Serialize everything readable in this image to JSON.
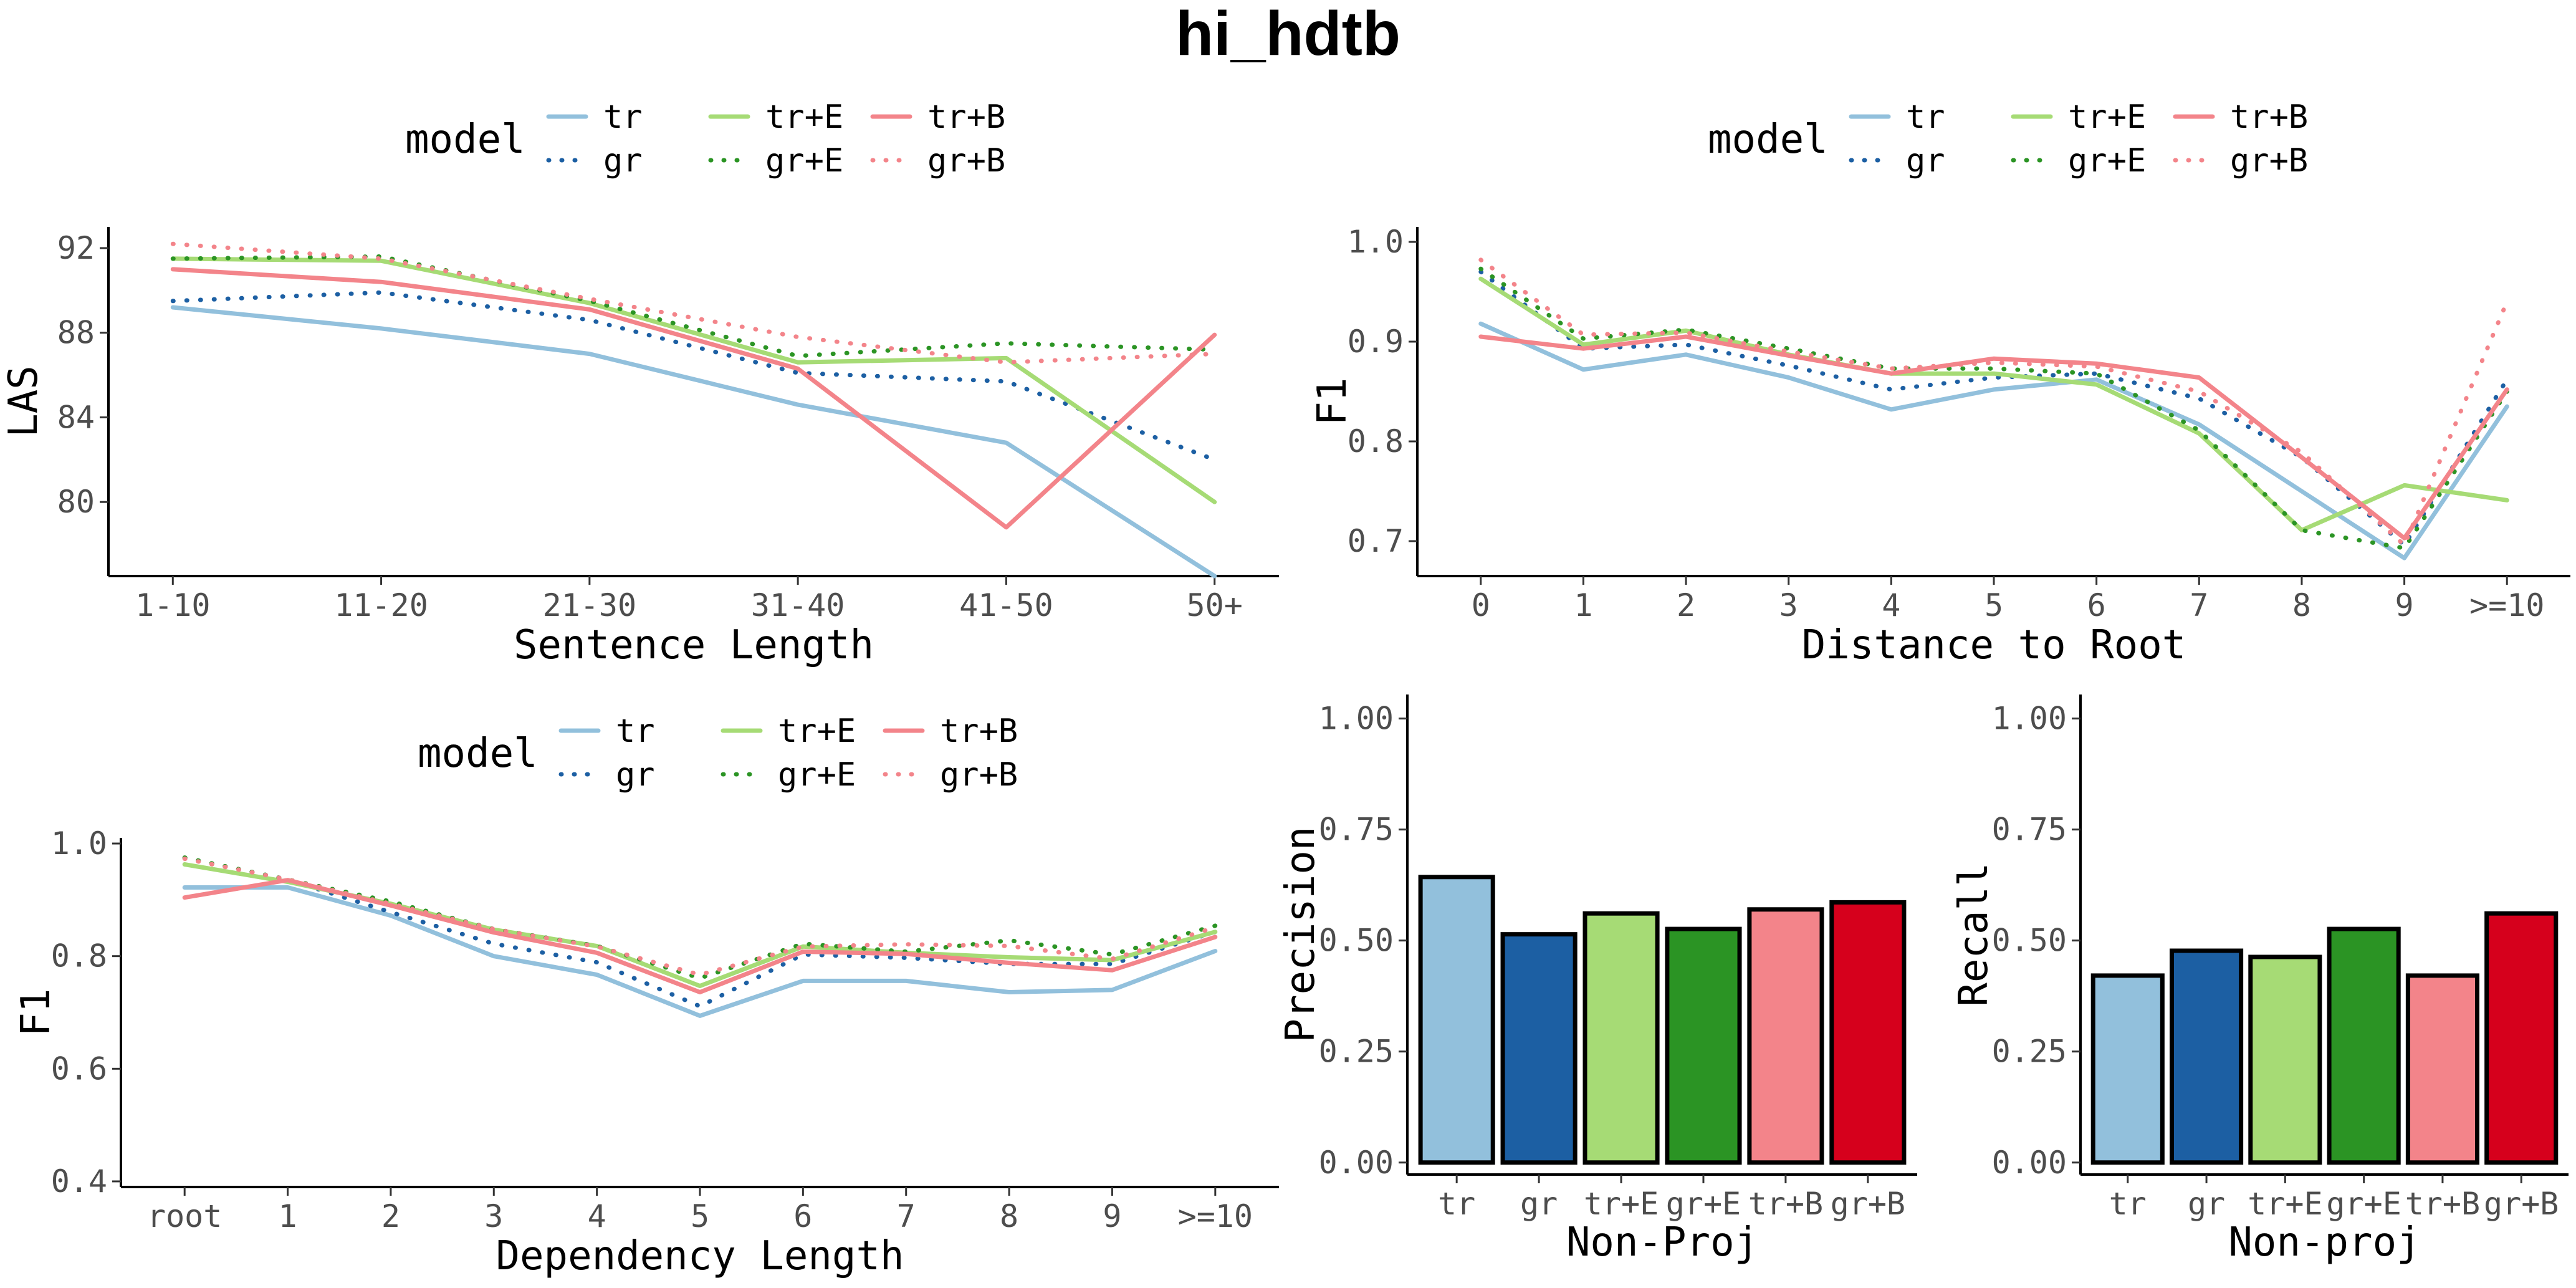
{
  "title": "hi_hdtb",
  "legend": {
    "title": "model",
    "entries": [
      {
        "name": "tr",
        "color": "#92c0dc",
        "dash": "solid"
      },
      {
        "name": "tr+E",
        "color": "#a6db75",
        "dash": "solid"
      },
      {
        "name": "tr+B",
        "color": "#f3848a",
        "dash": "solid"
      },
      {
        "name": "gr",
        "color": "#1c5fa3",
        "dash": "dotted"
      },
      {
        "name": "gr+E",
        "color": "#2b9424",
        "dash": "dotted"
      },
      {
        "name": "gr+B",
        "color": "#f3848a",
        "dash": "dotted"
      }
    ]
  },
  "chart_data": [
    {
      "id": "sentence-length",
      "type": "line",
      "categories": [
        "1-10",
        "11-20",
        "21-30",
        "31-40",
        "41-50",
        "50+"
      ],
      "xlabel": "Sentence Length",
      "ylabel": "LAS",
      "ylim": [
        76.5,
        93
      ],
      "yticks": [
        80,
        84,
        88,
        92
      ],
      "grid": false,
      "series": [
        {
          "name": "tr",
          "values": [
            89.2,
            88.2,
            87.0,
            84.6,
            82.8,
            76.5
          ]
        },
        {
          "name": "gr",
          "values": [
            89.5,
            89.9,
            88.6,
            86.1,
            85.7,
            82.0
          ]
        },
        {
          "name": "tr+E",
          "values": [
            91.5,
            91.4,
            89.4,
            86.6,
            86.8,
            80.0
          ]
        },
        {
          "name": "gr+E",
          "values": [
            91.5,
            91.6,
            89.5,
            86.9,
            87.5,
            87.2
          ]
        },
        {
          "name": "tr+B",
          "values": [
            91.0,
            90.4,
            89.1,
            86.3,
            78.8,
            87.9
          ]
        },
        {
          "name": "gr+B",
          "values": [
            92.2,
            91.5,
            89.6,
            87.8,
            86.6,
            87.0
          ]
        }
      ]
    },
    {
      "id": "distance-to-root",
      "type": "line",
      "categories": [
        "0",
        "1",
        "2",
        "3",
        "4",
        "5",
        "6",
        "7",
        "8",
        "9",
        ">=10"
      ],
      "xlabel": "Distance to Root",
      "ylabel": "F1",
      "ylim": [
        0.665,
        1.015
      ],
      "yticks": [
        0.7,
        0.8,
        0.9,
        1.0
      ],
      "yticklabels": [
        "0.7",
        "0.8",
        "0.9",
        "1.0"
      ],
      "grid": false,
      "series": [
        {
          "name": "tr",
          "values": [
            0.918,
            0.872,
            0.887,
            0.864,
            0.832,
            0.852,
            0.862,
            0.817,
            0.75,
            0.683,
            0.835
          ]
        },
        {
          "name": "gr",
          "values": [
            0.97,
            0.893,
            0.897,
            0.876,
            0.852,
            0.864,
            0.868,
            0.843,
            0.784,
            0.696,
            0.862
          ]
        },
        {
          "name": "tr+E",
          "values": [
            0.963,
            0.897,
            0.911,
            0.887,
            0.868,
            0.868,
            0.857,
            0.808,
            0.711,
            0.756,
            0.741
          ]
        },
        {
          "name": "gr+E",
          "values": [
            0.973,
            0.903,
            0.912,
            0.893,
            0.873,
            0.873,
            0.868,
            0.811,
            0.711,
            0.693,
            0.85
          ]
        },
        {
          "name": "tr+B",
          "values": [
            0.905,
            0.893,
            0.905,
            0.886,
            0.868,
            0.883,
            0.878,
            0.864,
            0.784,
            0.703,
            0.852
          ]
        },
        {
          "name": "gr+B",
          "values": [
            0.982,
            0.907,
            0.909,
            0.89,
            0.873,
            0.879,
            0.875,
            0.85,
            0.789,
            0.696,
            0.94
          ]
        }
      ]
    },
    {
      "id": "dependency-length",
      "type": "line",
      "categories": [
        "root",
        "1",
        "2",
        "3",
        "4",
        "5",
        "6",
        "7",
        "8",
        "9",
        ">=10"
      ],
      "xlabel": "Dependency Length",
      "ylabel": "F1",
      "ylim": [
        0.39,
        1.01
      ],
      "yticks": [
        0.4,
        0.6,
        0.8,
        1.0
      ],
      "yticklabels": [
        "0.4",
        "0.6",
        "0.8",
        "1.0"
      ],
      "grid": false,
      "series": [
        {
          "name": "tr",
          "values": [
            0.922,
            0.922,
            0.872,
            0.8,
            0.767,
            0.694,
            0.756,
            0.756,
            0.736,
            0.74,
            0.809
          ]
        },
        {
          "name": "gr",
          "values": [
            0.974,
            0.936,
            0.878,
            0.822,
            0.789,
            0.711,
            0.803,
            0.797,
            0.786,
            0.786,
            0.843
          ]
        },
        {
          "name": "tr+E",
          "values": [
            0.963,
            0.932,
            0.893,
            0.847,
            0.818,
            0.747,
            0.817,
            0.806,
            0.798,
            0.793,
            0.843
          ]
        },
        {
          "name": "gr+E",
          "values": [
            0.975,
            0.936,
            0.897,
            0.848,
            0.818,
            0.761,
            0.822,
            0.808,
            0.828,
            0.803,
            0.854
          ]
        },
        {
          "name": "tr+B",
          "values": [
            0.904,
            0.935,
            0.89,
            0.842,
            0.806,
            0.736,
            0.808,
            0.804,
            0.788,
            0.775,
            0.834
          ]
        },
        {
          "name": "gr+B",
          "values": [
            0.973,
            0.936,
            0.893,
            0.848,
            0.817,
            0.767,
            0.817,
            0.821,
            0.818,
            0.795,
            0.851
          ]
        }
      ]
    },
    {
      "id": "non-proj-precision",
      "type": "bar",
      "categories": [
        "tr",
        "gr",
        "tr+E",
        "gr+E",
        "tr+B",
        "gr+B"
      ],
      "values": [
        0.643,
        0.514,
        0.561,
        0.526,
        0.57,
        0.586
      ],
      "colors": [
        "#92c0dc",
        "#1c5fa3",
        "#a6db75",
        "#2b9424",
        "#f3848a",
        "#d6001c"
      ],
      "xlabel": "Non-Proj",
      "ylabel": "Precision",
      "ylim": [
        0,
        1.0
      ],
      "yticks": [
        0.0,
        0.25,
        0.5,
        0.75,
        1.0
      ],
      "yticklabels": [
        "0.00",
        "0.25",
        "0.50",
        "0.75",
        "1.00"
      ],
      "grid": false
    },
    {
      "id": "non-proj-recall",
      "type": "bar",
      "categories": [
        "tr",
        "gr",
        "tr+E",
        "gr+E",
        "tr+B",
        "gr+B"
      ],
      "values": [
        0.421,
        0.477,
        0.463,
        0.526,
        0.421,
        0.561
      ],
      "colors": [
        "#92c0dc",
        "#1c5fa3",
        "#a6db75",
        "#2b9424",
        "#f3848a",
        "#d6001c"
      ],
      "xlabel": "Non-proj",
      "ylabel": "Recall",
      "ylim": [
        0,
        1.0
      ],
      "yticks": [
        0.0,
        0.25,
        0.5,
        0.75,
        1.0
      ],
      "yticklabels": [
        "0.00",
        "0.25",
        "0.50",
        "0.75",
        "1.00"
      ],
      "grid": false
    }
  ]
}
